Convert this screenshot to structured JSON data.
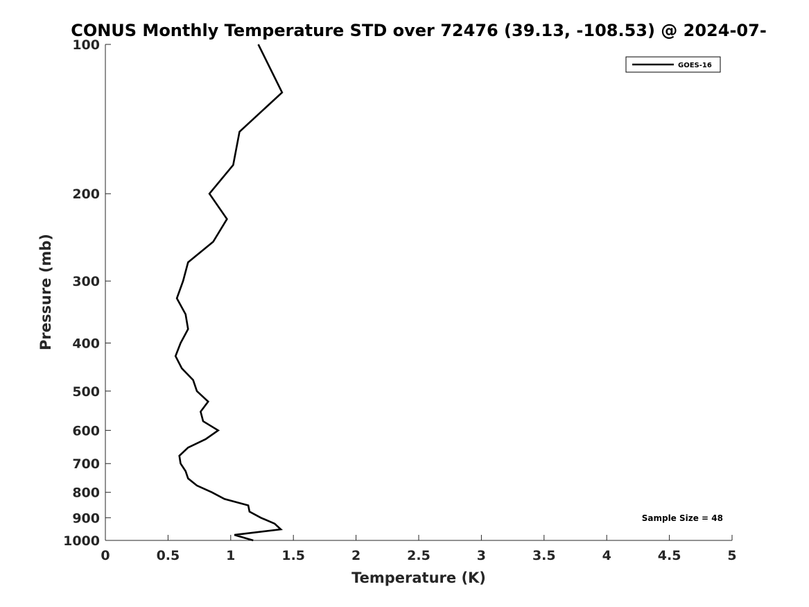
{
  "chart_data": {
    "type": "line",
    "title": "CONUS Monthly Temperature STD over 72476 (39.13, -108.53) @ 2024-07-",
    "xlabel": "Temperature (K)",
    "ylabel": "Pressure (mb)",
    "xlim": [
      0,
      5
    ],
    "ylim": [
      1000,
      100
    ],
    "y_scale": "log",
    "y_reversed": true,
    "x_ticks": [
      "0",
      "0.5",
      "1",
      "1.5",
      "2",
      "2.5",
      "3",
      "3.5",
      "4",
      "4.5",
      "5"
    ],
    "y_ticks": [
      "100",
      "200",
      "300",
      "400",
      "500",
      "600",
      "700",
      "800",
      "900",
      "1000"
    ],
    "grid": false,
    "legend_position": "top-right",
    "series": [
      {
        "name": "GOES-16",
        "color": "#000000",
        "points": [
          {
            "x": 1.22,
            "p": 100
          },
          {
            "x": 1.41,
            "p": 125
          },
          {
            "x": 1.07,
            "p": 150
          },
          {
            "x": 1.02,
            "p": 175
          },
          {
            "x": 0.83,
            "p": 200
          },
          {
            "x": 0.97,
            "p": 225
          },
          {
            "x": 0.86,
            "p": 250
          },
          {
            "x": 0.66,
            "p": 275
          },
          {
            "x": 0.62,
            "p": 300
          },
          {
            "x": 0.57,
            "p": 325
          },
          {
            "x": 0.64,
            "p": 350
          },
          {
            "x": 0.66,
            "p": 375
          },
          {
            "x": 0.6,
            "p": 400
          },
          {
            "x": 0.56,
            "p": 425
          },
          {
            "x": 0.61,
            "p": 450
          },
          {
            "x": 0.7,
            "p": 475
          },
          {
            "x": 0.73,
            "p": 500
          },
          {
            "x": 0.82,
            "p": 525
          },
          {
            "x": 0.76,
            "p": 550
          },
          {
            "x": 0.78,
            "p": 575
          },
          {
            "x": 0.9,
            "p": 600
          },
          {
            "x": 0.8,
            "p": 625
          },
          {
            "x": 0.66,
            "p": 650
          },
          {
            "x": 0.59,
            "p": 675
          },
          {
            "x": 0.6,
            "p": 700
          },
          {
            "x": 0.64,
            "p": 725
          },
          {
            "x": 0.66,
            "p": 750
          },
          {
            "x": 0.73,
            "p": 775
          },
          {
            "x": 0.85,
            "p": 800
          },
          {
            "x": 0.95,
            "p": 825
          },
          {
            "x": 1.14,
            "p": 850
          },
          {
            "x": 1.15,
            "p": 875
          },
          {
            "x": 1.24,
            "p": 900
          },
          {
            "x": 1.35,
            "p": 925
          },
          {
            "x": 1.4,
            "p": 950
          },
          {
            "x": 1.03,
            "p": 975
          },
          {
            "x": 1.18,
            "p": 1000
          }
        ]
      }
    ],
    "annotations": [
      "Sample Size = 48"
    ]
  }
}
